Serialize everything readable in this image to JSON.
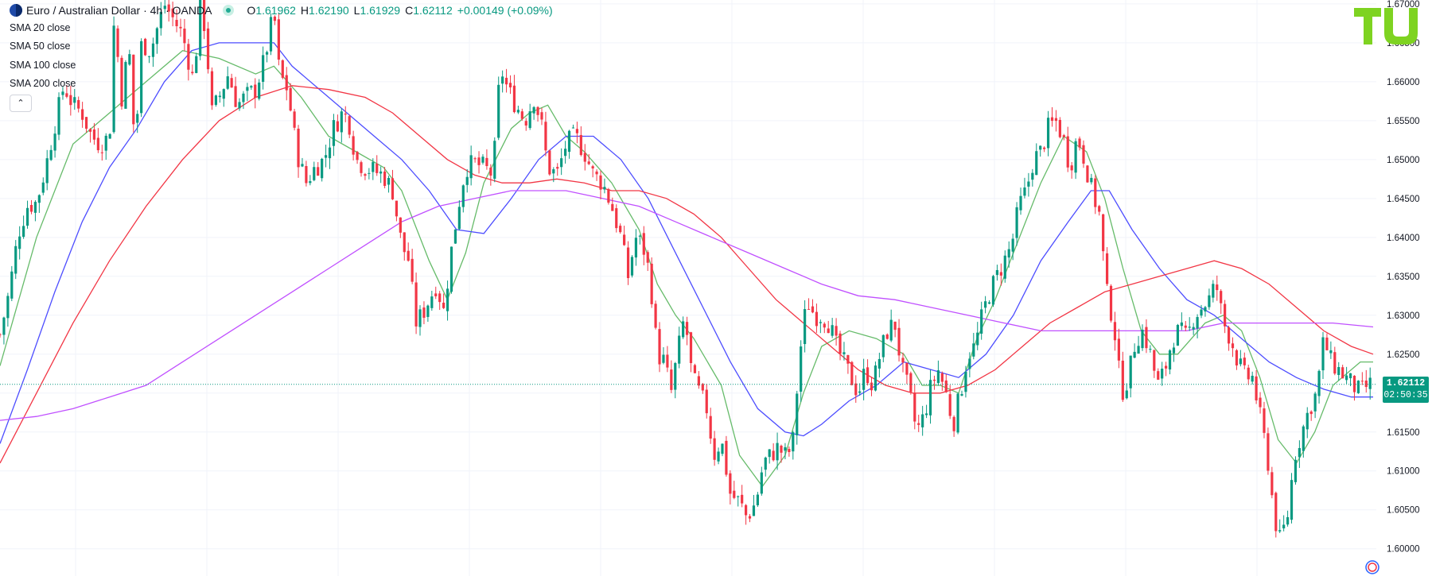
{
  "header": {
    "title": "Euro / Australian Dollar · 4h · OANDA",
    "open_label": "O",
    "open": "1.61962",
    "high_label": "H",
    "high": "1.62190",
    "low_label": "L",
    "low": "1.61929",
    "close_label": "C",
    "close": "1.62112",
    "change": "+0.00149 (+0.09%)"
  },
  "indicators": [
    {
      "label": "SMA 20 close",
      "color": "#66bb6a"
    },
    {
      "label": "SMA 50 close",
      "color": "#4d4dff"
    },
    {
      "label": "SMA 100 close",
      "color": "#f23645"
    },
    {
      "label": "SMA 200 close",
      "color": "#c050ff"
    }
  ],
  "collapse_icon": "chevron-up-icon",
  "logo_icon": "tradingview-logo-icon",
  "last_price": "1.62112",
  "countdown": "02:50:35",
  "colors": {
    "up": "#089981",
    "down": "#f23645",
    "grid": "#f0f3fa",
    "axis_text": "#131722"
  },
  "chart_data": {
    "type": "candlestick",
    "symbol": "EURAUD",
    "timeframe": "4h",
    "y_ticks": [
      "1.67000",
      "1.66500",
      "1.66000",
      "1.65500",
      "1.65000",
      "1.64500",
      "1.64000",
      "1.63500",
      "1.63000",
      "1.62500",
      "1.62000",
      "1.61500",
      "1.61000",
      "1.60500",
      "1.60000"
    ],
    "ylim": [
      1.5965,
      1.6705
    ],
    "grid": true,
    "close_path": [
      [
        0,
        1.6275
      ],
      [
        10,
        1.633
      ],
      [
        20,
        1.6405
      ],
      [
        30,
        1.644
      ],
      [
        40,
        1.6445
      ],
      [
        50,
        1.649
      ],
      [
        60,
        1.6545
      ],
      [
        70,
        1.6595
      ],
      [
        80,
        1.657
      ],
      [
        90,
        1.656
      ],
      [
        100,
        1.653
      ],
      [
        110,
        1.652
      ],
      [
        120,
        1.653
      ],
      [
        125,
        1.668
      ],
      [
        135,
        1.656
      ],
      [
        140,
        1.667
      ],
      [
        148,
        1.651
      ],
      [
        155,
        1.665
      ],
      [
        165,
        1.664
      ],
      [
        180,
        1.67
      ],
      [
        200,
        1.666
      ],
      [
        212,
        1.66
      ],
      [
        220,
        1.671
      ],
      [
        226,
        1.665
      ],
      [
        232,
        1.656
      ],
      [
        240,
        1.658
      ],
      [
        250,
        1.661
      ],
      [
        260,
        1.657
      ],
      [
        268,
        1.658
      ],
      [
        280,
        1.659
      ],
      [
        290,
        1.663
      ],
      [
        300,
        1.669
      ],
      [
        306,
        1.661
      ],
      [
        315,
        1.659
      ],
      [
        325,
        1.651
      ],
      [
        335,
        1.647
      ],
      [
        345,
        1.649
      ],
      [
        355,
        1.65
      ],
      [
        365,
        1.654
      ],
      [
        375,
        1.656
      ],
      [
        382,
        1.655
      ],
      [
        390,
        1.65
      ],
      [
        400,
        1.649
      ],
      [
        410,
        1.6485
      ],
      [
        420,
        1.648
      ],
      [
        430,
        1.646
      ],
      [
        440,
        1.639
      ],
      [
        448,
        1.637
      ],
      [
        455,
        1.629
      ],
      [
        462,
        1.63
      ],
      [
        470,
        1.632
      ],
      [
        478,
        1.634
      ],
      [
        486,
        1.6305
      ],
      [
        494,
        1.638
      ],
      [
        502,
        1.644
      ],
      [
        510,
        1.649
      ],
      [
        520,
        1.6495
      ],
      [
        530,
        1.649
      ],
      [
        540,
        1.648
      ],
      [
        548,
        1.662
      ],
      [
        556,
        1.659
      ],
      [
        565,
        1.657
      ],
      [
        575,
        1.655
      ],
      [
        585,
        1.658
      ],
      [
        593,
        1.6545
      ],
      [
        600,
        1.649
      ],
      [
        610,
        1.648
      ],
      [
        620,
        1.652
      ],
      [
        630,
        1.653
      ],
      [
        640,
        1.651
      ],
      [
        650,
        1.648
      ],
      [
        660,
        1.647
      ],
      [
        670,
        1.644
      ],
      [
        680,
        1.64
      ],
      [
        688,
        1.635
      ],
      [
        696,
        1.64
      ],
      [
        704,
        1.639
      ],
      [
        712,
        1.635
      ],
      [
        720,
        1.625
      ],
      [
        728,
        1.624
      ],
      [
        735,
        1.62
      ],
      [
        742,
        1.625
      ],
      [
        750,
        1.63
      ],
      [
        758,
        1.622
      ],
      [
        766,
        1.62
      ],
      [
        774,
        1.618
      ],
      [
        782,
        1.612
      ],
      [
        790,
        1.614
      ],
      [
        800,
        1.607
      ],
      [
        810,
        1.606
      ],
      [
        818,
        1.604
      ],
      [
        828,
        1.606
      ],
      [
        836,
        1.611
      ],
      [
        844,
        1.612
      ],
      [
        852,
        1.613
      ],
      [
        860,
        1.612
      ],
      [
        868,
        1.613
      ],
      [
        876,
        1.625
      ],
      [
        884,
        1.632
      ],
      [
        892,
        1.63
      ],
      [
        900,
        1.63
      ],
      [
        908,
        1.629
      ],
      [
        916,
        1.626
      ],
      [
        924,
        1.624
      ],
      [
        932,
        1.622
      ],
      [
        940,
        1.62
      ],
      [
        948,
        1.623
      ],
      [
        956,
        1.621
      ],
      [
        964,
        1.625
      ],
      [
        972,
        1.628
      ],
      [
        980,
        1.629
      ],
      [
        988,
        1.623
      ],
      [
        996,
        1.62
      ],
      [
        1004,
        1.615
      ],
      [
        1012,
        1.617
      ],
      [
        1020,
        1.621
      ],
      [
        1028,
        1.623
      ],
      [
        1036,
        1.62
      ],
      [
        1044,
        1.616
      ],
      [
        1052,
        1.62
      ],
      [
        1060,
        1.625
      ],
      [
        1068,
        1.626
      ],
      [
        1076,
        1.63
      ],
      [
        1084,
        1.633
      ],
      [
        1092,
        1.635
      ],
      [
        1100,
        1.637
      ],
      [
        1108,
        1.639
      ],
      [
        1116,
        1.644
      ],
      [
        1124,
        1.646
      ],
      [
        1132,
        1.65
      ],
      [
        1140,
        1.651
      ],
      [
        1148,
        1.654
      ],
      [
        1156,
        1.655
      ],
      [
        1164,
        1.653
      ],
      [
        1172,
        1.649
      ],
      [
        1180,
        1.653
      ],
      [
        1188,
        1.65
      ],
      [
        1196,
        1.646
      ],
      [
        1204,
        1.643
      ],
      [
        1212,
        1.633
      ],
      [
        1220,
        1.629
      ],
      [
        1228,
        1.62
      ],
      [
        1236,
        1.622
      ],
      [
        1244,
        1.627
      ],
      [
        1252,
        1.628
      ],
      [
        1260,
        1.625
      ],
      [
        1268,
        1.621
      ],
      [
        1276,
        1.623
      ],
      [
        1284,
        1.627
      ],
      [
        1292,
        1.628
      ],
      [
        1300,
        1.627
      ],
      [
        1308,
        1.63
      ],
      [
        1316,
        1.631
      ],
      [
        1324,
        1.632
      ],
      [
        1332,
        1.634
      ],
      [
        1340,
        1.629
      ],
      [
        1348,
        1.627
      ],
      [
        1356,
        1.624
      ],
      [
        1364,
        1.622
      ],
      [
        1372,
        1.622
      ],
      [
        1380,
        1.617
      ],
      [
        1388,
        1.612
      ],
      [
        1396,
        1.604
      ],
      [
        1402,
        1.601
      ],
      [
        1410,
        1.604
      ],
      [
        1418,
        1.612
      ],
      [
        1426,
        1.615
      ],
      [
        1434,
        1.618
      ],
      [
        1442,
        1.62
      ],
      [
        1450,
        1.627
      ],
      [
        1458,
        1.624
      ],
      [
        1466,
        1.623
      ],
      [
        1474,
        1.622
      ],
      [
        1482,
        1.621
      ],
      [
        1490,
        1.62
      ],
      [
        1498,
        1.621
      ],
      [
        1504,
        1.6211
      ]
    ],
    "sma_20": [
      [
        0,
        1.6235
      ],
      [
        40,
        1.64
      ],
      [
        80,
        1.652
      ],
      [
        120,
        1.656
      ],
      [
        160,
        1.66
      ],
      [
        200,
        1.664
      ],
      [
        240,
        1.663
      ],
      [
        280,
        1.661
      ],
      [
        300,
        1.662
      ],
      [
        330,
        1.658
      ],
      [
        360,
        1.653
      ],
      [
        390,
        1.651
      ],
      [
        420,
        1.649
      ],
      [
        440,
        1.646
      ],
      [
        470,
        1.637
      ],
      [
        490,
        1.632
      ],
      [
        510,
        1.638
      ],
      [
        530,
        1.647
      ],
      [
        560,
        1.654
      ],
      [
        580,
        1.656
      ],
      [
        600,
        1.657
      ],
      [
        620,
        1.653
      ],
      [
        640,
        1.651
      ],
      [
        670,
        1.647
      ],
      [
        700,
        1.641
      ],
      [
        720,
        1.634
      ],
      [
        740,
        1.63
      ],
      [
        760,
        1.627
      ],
      [
        790,
        1.621
      ],
      [
        810,
        1.612
      ],
      [
        835,
        1.608
      ],
      [
        860,
        1.612
      ],
      [
        880,
        1.62
      ],
      [
        900,
        1.626
      ],
      [
        930,
        1.628
      ],
      [
        960,
        1.627
      ],
      [
        990,
        1.625
      ],
      [
        1010,
        1.621
      ],
      [
        1030,
        1.621
      ],
      [
        1050,
        1.62
      ],
      [
        1070,
        1.627
      ],
      [
        1090,
        1.632
      ],
      [
        1110,
        1.638
      ],
      [
        1140,
        1.647
      ],
      [
        1165,
        1.653
      ],
      [
        1190,
        1.651
      ],
      [
        1210,
        1.645
      ],
      [
        1230,
        1.636
      ],
      [
        1250,
        1.628
      ],
      [
        1270,
        1.625
      ],
      [
        1290,
        1.625
      ],
      [
        1320,
        1.629
      ],
      [
        1340,
        1.63
      ],
      [
        1360,
        1.628
      ],
      [
        1380,
        1.622
      ],
      [
        1400,
        1.614
      ],
      [
        1420,
        1.611
      ],
      [
        1440,
        1.615
      ],
      [
        1460,
        1.621
      ],
      [
        1490,
        1.624
      ],
      [
        1504,
        1.624
      ]
    ],
    "sma_50": [
      [
        0,
        1.6135
      ],
      [
        30,
        1.623
      ],
      [
        60,
        1.633
      ],
      [
        90,
        1.642
      ],
      [
        120,
        1.649
      ],
      [
        150,
        1.654
      ],
      [
        180,
        1.66
      ],
      [
        210,
        1.664
      ],
      [
        240,
        1.665
      ],
      [
        270,
        1.665
      ],
      [
        300,
        1.665
      ],
      [
        320,
        1.662
      ],
      [
        350,
        1.659
      ],
      [
        380,
        1.656
      ],
      [
        410,
        1.653
      ],
      [
        440,
        1.65
      ],
      [
        470,
        1.646
      ],
      [
        500,
        1.641
      ],
      [
        530,
        1.6405
      ],
      [
        560,
        1.645
      ],
      [
        590,
        1.65
      ],
      [
        620,
        1.653
      ],
      [
        650,
        1.653
      ],
      [
        680,
        1.65
      ],
      [
        710,
        1.645
      ],
      [
        740,
        1.638
      ],
      [
        770,
        1.631
      ],
      [
        800,
        1.624
      ],
      [
        830,
        1.618
      ],
      [
        860,
        1.615
      ],
      [
        880,
        1.6145
      ],
      [
        900,
        1.616
      ],
      [
        930,
        1.619
      ],
      [
        960,
        1.621
      ],
      [
        990,
        1.624
      ],
      [
        1020,
        1.623
      ],
      [
        1050,
        1.622
      ],
      [
        1080,
        1.625
      ],
      [
        1110,
        1.63
      ],
      [
        1140,
        1.637
      ],
      [
        1170,
        1.642
      ],
      [
        1195,
        1.646
      ],
      [
        1215,
        1.646
      ],
      [
        1240,
        1.641
      ],
      [
        1270,
        1.636
      ],
      [
        1300,
        1.632
      ],
      [
        1330,
        1.63
      ],
      [
        1360,
        1.627
      ],
      [
        1390,
        1.624
      ],
      [
        1420,
        1.622
      ],
      [
        1450,
        1.6205
      ],
      [
        1480,
        1.6195
      ],
      [
        1504,
        1.6195
      ]
    ],
    "sma_100": [
      [
        0,
        1.611
      ],
      [
        40,
        1.62
      ],
      [
        80,
        1.629
      ],
      [
        120,
        1.637
      ],
      [
        160,
        1.644
      ],
      [
        200,
        1.65
      ],
      [
        240,
        1.655
      ],
      [
        280,
        1.658
      ],
      [
        320,
        1.6595
      ],
      [
        360,
        1.659
      ],
      [
        400,
        1.658
      ],
      [
        430,
        1.656
      ],
      [
        460,
        1.653
      ],
      [
        490,
        1.65
      ],
      [
        520,
        1.648
      ],
      [
        550,
        1.647
      ],
      [
        580,
        1.647
      ],
      [
        610,
        1.6475
      ],
      [
        640,
        1.647
      ],
      [
        670,
        1.646
      ],
      [
        700,
        1.646
      ],
      [
        730,
        1.645
      ],
      [
        760,
        1.643
      ],
      [
        790,
        1.64
      ],
      [
        820,
        1.636
      ],
      [
        850,
        1.632
      ],
      [
        880,
        1.629
      ],
      [
        910,
        1.626
      ],
      [
        940,
        1.623
      ],
      [
        970,
        1.621
      ],
      [
        1000,
        1.62
      ],
      [
        1030,
        1.62
      ],
      [
        1060,
        1.621
      ],
      [
        1090,
        1.623
      ],
      [
        1120,
        1.626
      ],
      [
        1150,
        1.629
      ],
      [
        1180,
        1.631
      ],
      [
        1210,
        1.633
      ],
      [
        1240,
        1.634
      ],
      [
        1270,
        1.635
      ],
      [
        1300,
        1.636
      ],
      [
        1330,
        1.637
      ],
      [
        1360,
        1.636
      ],
      [
        1390,
        1.634
      ],
      [
        1420,
        1.631
      ],
      [
        1450,
        1.628
      ],
      [
        1480,
        1.626
      ],
      [
        1504,
        1.625
      ]
    ],
    "sma_200": [
      [
        0,
        1.6165
      ],
      [
        40,
        1.617
      ],
      [
        80,
        1.618
      ],
      [
        120,
        1.6195
      ],
      [
        160,
        1.621
      ],
      [
        200,
        1.624
      ],
      [
        240,
        1.627
      ],
      [
        280,
        1.63
      ],
      [
        320,
        1.633
      ],
      [
        360,
        1.636
      ],
      [
        400,
        1.639
      ],
      [
        440,
        1.642
      ],
      [
        480,
        1.644
      ],
      [
        520,
        1.645
      ],
      [
        560,
        1.646
      ],
      [
        590,
        1.646
      ],
      [
        620,
        1.646
      ],
      [
        660,
        1.645
      ],
      [
        700,
        1.644
      ],
      [
        740,
        1.642
      ],
      [
        780,
        1.64
      ],
      [
        820,
        1.638
      ],
      [
        860,
        1.636
      ],
      [
        900,
        1.634
      ],
      [
        940,
        1.6325
      ],
      [
        980,
        1.632
      ],
      [
        1020,
        1.631
      ],
      [
        1060,
        1.63
      ],
      [
        1100,
        1.629
      ],
      [
        1140,
        1.628
      ],
      [
        1180,
        1.628
      ],
      [
        1220,
        1.628
      ],
      [
        1260,
        1.628
      ],
      [
        1300,
        1.628
      ],
      [
        1340,
        1.629
      ],
      [
        1380,
        1.629
      ],
      [
        1420,
        1.629
      ],
      [
        1460,
        1.629
      ],
      [
        1504,
        1.6285
      ]
    ]
  }
}
